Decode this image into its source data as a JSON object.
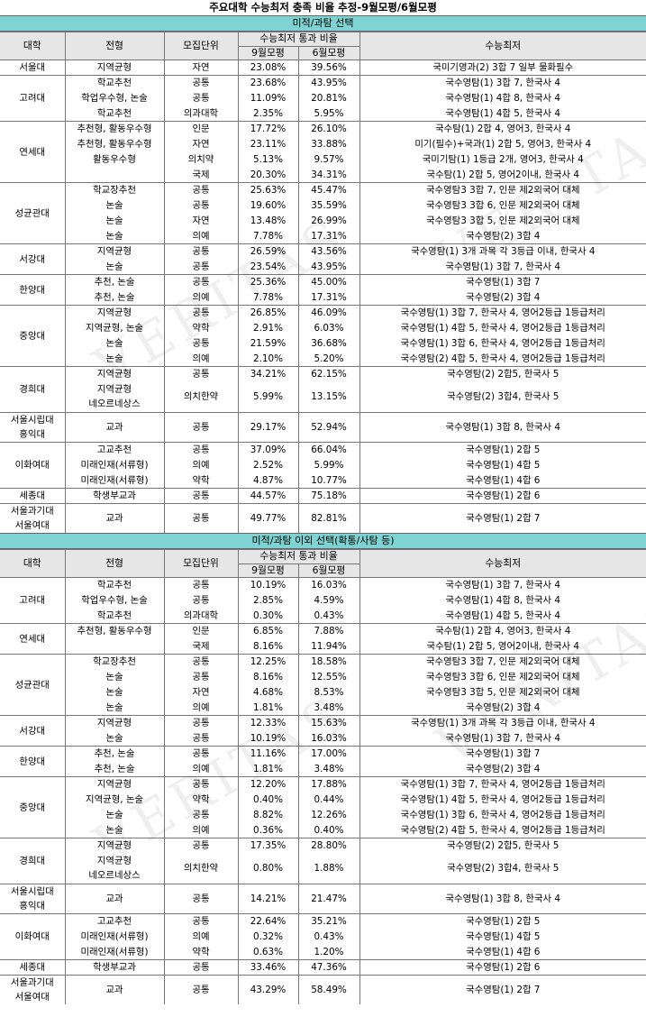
{
  "title": "주요대학 수능최저 충족 비율 추정-9월모평/6월모평",
  "watermark": "VERITAS",
  "colors": {
    "band": "#7fd3d3",
    "header": "#e6e6e6",
    "line": "#777777"
  },
  "headers": {
    "univ": "대학",
    "type": "전형",
    "unit": "모집단위",
    "pass_group": "수능최저 통과 비율",
    "sep": "9월모평",
    "jun": "6월모평",
    "criteria": "수능최저"
  },
  "sections": [
    {
      "label": "미적/과탐 선택",
      "groups": [
        {
          "univ": [
            "서울대"
          ],
          "rows": [
            [
              "지역균형",
              "자연",
              "23.08%",
              "39.56%",
              "국미기영과(2) 3합 7 일부 물화필수"
            ]
          ]
        },
        {
          "univ": [
            "고려대"
          ],
          "rows": [
            [
              "학교추천",
              "공통",
              "23.68%",
              "43.95%",
              "국수영탐(1) 3합 7, 한국사 4"
            ],
            [
              "학업우수형, 논술",
              "공통",
              "11.09%",
              "20.81%",
              "국수영탐(1) 4합 8, 한국사 4"
            ],
            [
              "학교추천",
              "의과대학",
              "2.35%",
              "5.95%",
              "국수영탐(1) 4합 5, 한국사 4"
            ]
          ]
        },
        {
          "univ": [
            "연세대"
          ],
          "rows": [
            [
              "추천형, 활동우수형",
              "인문",
              "17.72%",
              "26.10%",
              "국수탐(1) 2합 4, 영어3, 한국사 4"
            ],
            [
              "추천형, 활동우수형",
              "자연",
              "23.11%",
              "33.88%",
              "미기(필수)+국과(1) 2합 5, 영어3, 한국사 4"
            ],
            [
              "활동우수형",
              "의치약",
              "5.13%",
              "9.57%",
              "국미기탐(1) 1등급 2개, 영어3, 한국사 4"
            ],
            [
              "",
              "국제",
              "20.30%",
              "34.31%",
              "국수탐(1) 2합 5, 영어2이내, 한국사 4"
            ]
          ]
        },
        {
          "univ": [
            "성균관대"
          ],
          "rows": [
            [
              "학교장추천",
              "공통",
              "25.63%",
              "45.47%",
              "국수영탐3 3합 7, 인문 제2외국어 대체"
            ],
            [
              "논술",
              "공통",
              "19.60%",
              "35.59%",
              "국수영탐3 3합 6, 인문 제2외국어 대체"
            ],
            [
              "논술",
              "자연",
              "13.48%",
              "26.99%",
              "국수영탐3 3합 5, 인문 제2외국어 대체"
            ],
            [
              "논술",
              "의예",
              "7.78%",
              "17.31%",
              "국수영탐(2) 3합 4"
            ]
          ]
        },
        {
          "univ": [
            "서강대"
          ],
          "rows": [
            [
              "지역균형",
              "공통",
              "26.59%",
              "43.56%",
              "국수영탐(1) 3개 과목 각 3등급 이내, 한국사 4"
            ],
            [
              "논술",
              "공통",
              "23.54%",
              "43.95%",
              "국수영탐(1) 3합 7, 한국사 4"
            ]
          ]
        },
        {
          "univ": [
            "한양대"
          ],
          "rows": [
            [
              "추천, 논술",
              "공통",
              "25.36%",
              "45.00%",
              "국수영탐(1) 3합 7"
            ],
            [
              "추천, 논술",
              "의예",
              "7.78%",
              "17.31%",
              "국수영탐(2) 3합 4"
            ]
          ]
        },
        {
          "univ": [
            "중앙대"
          ],
          "rows": [
            [
              "지역균형",
              "공통",
              "26.85%",
              "46.09%",
              "국수영탐(1) 3합 7, 한국사 4, 영어2등급 1등급처리"
            ],
            [
              "지역균형, 논술",
              "약학",
              "2.91%",
              "6.03%",
              "국수영탐(1) 4합 5, 한국사 4, 영어2등급 1등급처리"
            ],
            [
              "논술",
              "공통",
              "21.59%",
              "36.68%",
              "국수영탐(1) 3합 6, 한국사 4, 영어2등급 1등급처리"
            ],
            [
              "논술",
              "의예",
              "2.10%",
              "5.20%",
              "국수영탐(2) 4합 5, 한국사 4, 영어2등급 1등급처리"
            ]
          ]
        },
        {
          "univ": [
            "경희대"
          ],
          "rows": [
            [
              "지역균형",
              "공통",
              "34.21%",
              "62.15%",
              "국수영탐(2) 2합5, 한국사 5"
            ],
            [
              "지역균형|네오르네상스",
              "의치한약",
              "5.99%",
              "13.15%",
              "국수영탐(2) 3합4, 한국사 5"
            ]
          ]
        },
        {
          "univ": [
            "서울시립대",
            "홍익대"
          ],
          "rows": [
            [
              "교과",
              "공통",
              "29.17%",
              "52.94%",
              "국수영탐(1) 3합 8, 한국사 4"
            ]
          ]
        },
        {
          "univ": [
            "이화여대"
          ],
          "rows": [
            [
              "고교추천",
              "공통",
              "37.09%",
              "66.04%",
              "국수영탐(1) 2합 5"
            ],
            [
              "미래인재(서류형)",
              "의예",
              "2.52%",
              "5.99%",
              "국수영탐(1) 4합 5"
            ],
            [
              "미래인재(서류형)",
              "약학",
              "4.87%",
              "10.77%",
              "국수영탐(1) 4합 6"
            ]
          ]
        },
        {
          "univ": [
            "세종대"
          ],
          "rows": [
            [
              "학생부교과",
              "공통",
              "44.57%",
              "75.18%",
              "국수영탐(1) 2합 6"
            ]
          ]
        },
        {
          "univ": [
            "서울과기대",
            "서울여대"
          ],
          "rows": [
            [
              "교과",
              "공통",
              "49.77%",
              "82.81%",
              "국수영탐(1) 2합 7"
            ]
          ]
        }
      ]
    },
    {
      "label": "미적/과탐 이외 선택(확통/사탐 등)",
      "groups": [
        {
          "univ": [
            "고려대"
          ],
          "rows": [
            [
              "학교추천",
              "공통",
              "10.19%",
              "16.03%",
              "국수영탐(1) 3합 7, 한국사 4"
            ],
            [
              "학업우수형, 논술",
              "공통",
              "2.85%",
              "4.59%",
              "국수영탐(1) 4합 8, 한국사 4"
            ],
            [
              "학교추천",
              "의과대학",
              "0.30%",
              "0.43%",
              "국수영탐(1) 4합 5, 한국사 4"
            ]
          ]
        },
        {
          "univ": [
            "연세대"
          ],
          "rows": [
            [
              "추천형, 활동우수형",
              "인문",
              "6.85%",
              "7.88%",
              "국수탐(1) 2합 4, 영어3, 한국사 4"
            ],
            [
              "",
              "국제",
              "8.16%",
              "11.94%",
              "국수탐(1) 2합 5, 영어2이내, 한국사 4"
            ]
          ]
        },
        {
          "univ": [
            "성균관대"
          ],
          "rows": [
            [
              "학교장추천",
              "공통",
              "12.25%",
              "18.58%",
              "국수영탐3 3합 7, 인문 제2외국어 대체"
            ],
            [
              "논술",
              "공통",
              "8.16%",
              "12.55%",
              "국수영탐3 3합 6, 인문 제2외국어 대체"
            ],
            [
              "논술",
              "자연",
              "4.68%",
              "8.53%",
              "국수영탐3 3합 5, 인문 제2외국어 대체"
            ],
            [
              "논술",
              "의예",
              "1.81%",
              "3.48%",
              "국수영탐(2) 3합 4"
            ]
          ]
        },
        {
          "univ": [
            "서강대"
          ],
          "rows": [
            [
              "지역균형",
              "공통",
              "12.33%",
              "15.63%",
              "국수영탐(1) 3개 과목 각 3등급 이내, 한국사 4"
            ],
            [
              "논술",
              "공통",
              "10.19%",
              "16.03%",
              "국수영탐(1) 3합 7, 한국사 4"
            ]
          ]
        },
        {
          "univ": [
            "한양대"
          ],
          "rows": [
            [
              "추천, 논술",
              "공통",
              "11.16%",
              "17.00%",
              "국수영탐(1) 3합 7"
            ],
            [
              "추천, 논술",
              "의예",
              "1.81%",
              "3.48%",
              "국수영탐(2) 3합 4"
            ]
          ]
        },
        {
          "univ": [
            "중앙대"
          ],
          "rows": [
            [
              "지역균형",
              "공통",
              "12.20%",
              "17.88%",
              "국수영탐(1) 3합 7, 한국사 4, 영어2등급 1등급처리"
            ],
            [
              "지역균형, 논술",
              "약학",
              "0.40%",
              "0.44%",
              "국수영탐(1) 4합 5, 한국사 4, 영어2등급 1등급처리"
            ],
            [
              "논술",
              "공통",
              "8.82%",
              "12.26%",
              "국수영탐(1) 3합 6, 한국사 4, 영어2등급 1등급처리"
            ],
            [
              "논술",
              "의예",
              "0.36%",
              "0.40%",
              "국수영탐(2) 4합 5, 한국사 4, 영어2등급 1등급처리"
            ]
          ]
        },
        {
          "univ": [
            "경희대"
          ],
          "rows": [
            [
              "지역균형",
              "공통",
              "17.35%",
              "28.80%",
              "국수영탐(2) 2합5, 한국사 5"
            ],
            [
              "지역균형|네오르네상스",
              "의치한약",
              "0.80%",
              "1.88%",
              "국수영탐(2) 3합4, 한국사 5"
            ]
          ]
        },
        {
          "univ": [
            "서울시립대",
            "홍익대"
          ],
          "rows": [
            [
              "교과",
              "공통",
              "14.21%",
              "21.47%",
              "국수영탐(1) 3합 8, 한국사 4"
            ]
          ]
        },
        {
          "univ": [
            "이화여대"
          ],
          "rows": [
            [
              "고교추천",
              "공통",
              "22.64%",
              "35.21%",
              "국수영탐(1) 2합 5"
            ],
            [
              "미래인재(서류형)",
              "의예",
              "0.32%",
              "0.43%",
              "국수영탐(1) 4합 5"
            ],
            [
              "미래인재(서류형)",
              "약학",
              "0.63%",
              "1.20%",
              "국수영탐(1) 4합 6"
            ]
          ]
        },
        {
          "univ": [
            "세종대"
          ],
          "rows": [
            [
              "학생부교과",
              "공통",
              "33.46%",
              "47.36%",
              "국수영탐(1) 2합 6"
            ]
          ]
        },
        {
          "univ": [
            "서울과기대",
            "서울여대"
          ],
          "rows": [
            [
              "교과",
              "공통",
              "43.29%",
              "58.49%",
              "국수영탐(1) 2합 7"
            ]
          ]
        }
      ]
    }
  ]
}
